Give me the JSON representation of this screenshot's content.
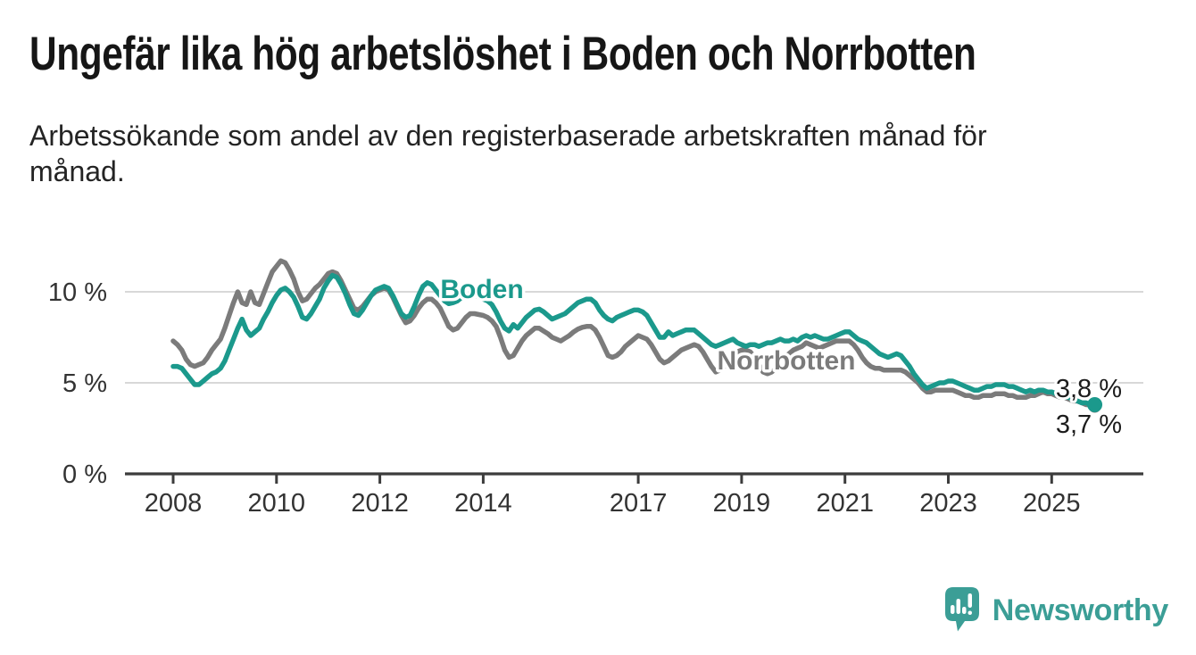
{
  "header": {
    "title": "Ungefär lika hög arbetslöshet i Boden och Norrbotten",
    "subtitle_lines": [
      "Arbetssökande som andel av den registerbaserade arbetskraften månad för",
      "månad."
    ]
  },
  "chart_data": {
    "type": "line",
    "title": "Ungefär lika hög arbetslöshet i Boden och Norrbotten",
    "subtitle": "Arbetssökande som andel av den registerbaserade arbetskraften månad för månad.",
    "unit": "%",
    "grid": "horizontal",
    "legend_position": "inline-labels",
    "x_axis": {
      "range_years": [
        2008,
        2026
      ],
      "ticks": [
        {
          "label": "2008",
          "year": 2008
        },
        {
          "label": "2010",
          "year": 2010
        },
        {
          "label": "2012",
          "year": 2012
        },
        {
          "label": "2014",
          "year": 2014
        },
        {
          "label": "2017",
          "year": 2017
        },
        {
          "label": "2019",
          "year": 2019
        },
        {
          "label": "2021",
          "year": 2021
        },
        {
          "label": "2023",
          "year": 2023
        },
        {
          "label": "2025",
          "year": 2025
        }
      ]
    },
    "y_axis": {
      "unit": "%",
      "range": [
        0,
        12.3
      ],
      "ticks": [
        {
          "label": "0 %",
          "value": 0
        },
        {
          "label": "5 %",
          "value": 5
        },
        {
          "label": "10 %",
          "value": 10
        }
      ]
    },
    "series": [
      {
        "name": "Boden",
        "color": "#1b998c",
        "start": "2008-01",
        "interval": "monthly",
        "end_label": "3,8 %",
        "last_value": 3.8,
        "values": [
          5.9,
          5.9,
          5.8,
          5.5,
          5.2,
          4.9,
          4.9,
          5.1,
          5.3,
          5.5,
          5.6,
          5.8,
          6.2,
          6.8,
          7.4,
          8.0,
          8.5,
          7.9,
          7.6,
          7.8,
          8.0,
          8.5,
          8.9,
          9.4,
          9.8,
          10.1,
          10.2,
          10.0,
          9.7,
          9.2,
          8.6,
          8.5,
          8.8,
          9.2,
          9.6,
          10.2,
          10.6,
          10.9,
          10.8,
          10.4,
          9.9,
          9.3,
          8.8,
          8.7,
          9.0,
          9.4,
          9.8,
          10.1,
          10.2,
          10.3,
          10.2,
          9.8,
          9.3,
          8.8,
          8.6,
          8.7,
          9.2,
          9.8,
          10.3,
          10.5,
          10.4,
          10.1,
          9.8,
          9.5,
          9.35,
          9.4,
          9.5,
          9.7,
          9.85,
          9.9,
          9.85,
          9.7,
          9.6,
          9.5,
          9.3,
          8.9,
          8.4,
          8.0,
          7.85,
          8.2,
          8.0,
          8.3,
          8.6,
          8.8,
          9.0,
          9.05,
          8.9,
          8.7,
          8.5,
          8.6,
          8.7,
          8.8,
          9.0,
          9.2,
          9.4,
          9.5,
          9.6,
          9.6,
          9.4,
          9.0,
          8.7,
          8.5,
          8.4,
          8.6,
          8.7,
          8.8,
          8.9,
          9.0,
          9.0,
          8.9,
          8.7,
          8.3,
          7.9,
          7.5,
          7.5,
          7.8,
          7.6,
          7.7,
          7.8,
          7.9,
          7.9,
          7.9,
          7.7,
          7.5,
          7.3,
          7.1,
          7.0,
          7.1,
          7.2,
          7.3,
          7.4,
          7.2,
          7.1,
          7.0,
          7.1,
          7.1,
          7.0,
          7.1,
          7.2,
          7.2,
          7.3,
          7.4,
          7.3,
          7.3,
          7.4,
          7.3,
          7.5,
          7.6,
          7.5,
          7.6,
          7.5,
          7.4,
          7.4,
          7.5,
          7.6,
          7.7,
          7.8,
          7.8,
          7.6,
          7.4,
          7.3,
          7.2,
          7.0,
          6.8,
          6.6,
          6.5,
          6.4,
          6.5,
          6.6,
          6.5,
          6.2,
          5.9,
          5.5,
          5.2,
          4.9,
          4.7,
          4.8,
          4.9,
          5.0,
          5.0,
          5.1,
          5.1,
          5.0,
          4.9,
          4.8,
          4.7,
          4.6,
          4.6,
          4.7,
          4.8,
          4.8,
          4.9,
          4.9,
          4.9,
          4.8,
          4.8,
          4.7,
          4.6,
          4.5,
          4.6,
          4.5,
          4.6,
          4.6,
          4.5,
          4.5,
          4.4,
          4.3,
          4.2,
          4.2,
          4.1,
          4.0,
          3.9,
          3.9,
          3.8,
          3.8
        ]
      },
      {
        "name": "Norrbotten",
        "color": "#7b7b7b",
        "start": "2008-01",
        "interval": "monthly",
        "end_label": "3,7 %",
        "last_value": 3.7,
        "values": [
          7.3,
          7.1,
          6.8,
          6.3,
          6.0,
          5.9,
          6.0,
          6.1,
          6.4,
          6.8,
          7.1,
          7.4,
          8.0,
          8.7,
          9.4,
          10.0,
          9.4,
          9.3,
          10.0,
          9.4,
          9.3,
          9.9,
          10.5,
          11.1,
          11.4,
          11.7,
          11.6,
          11.2,
          10.7,
          10.0,
          9.5,
          9.6,
          9.9,
          10.2,
          10.4,
          10.7,
          11.0,
          11.1,
          11.0,
          10.6,
          10.1,
          9.6,
          9.1,
          9.0,
          9.2,
          9.5,
          9.8,
          10.0,
          10.1,
          10.2,
          10.1,
          9.7,
          9.2,
          8.7,
          8.3,
          8.4,
          8.7,
          9.1,
          9.4,
          9.6,
          9.6,
          9.4,
          9.1,
          8.6,
          8.1,
          7.9,
          8.0,
          8.3,
          8.6,
          8.8,
          8.8,
          8.75,
          8.7,
          8.6,
          8.4,
          8.1,
          7.5,
          6.8,
          6.4,
          6.5,
          6.9,
          7.3,
          7.6,
          7.8,
          8.0,
          8.0,
          7.85,
          7.7,
          7.5,
          7.4,
          7.3,
          7.45,
          7.6,
          7.8,
          7.95,
          8.05,
          8.1,
          8.1,
          7.9,
          7.5,
          7.0,
          6.5,
          6.4,
          6.5,
          6.7,
          7.0,
          7.2,
          7.4,
          7.6,
          7.5,
          7.4,
          7.1,
          6.7,
          6.3,
          6.1,
          6.2,
          6.4,
          6.6,
          6.8,
          6.9,
          7.0,
          7.1,
          7.0,
          6.7,
          6.3,
          5.9,
          5.6,
          5.7,
          5.9,
          6.2,
          6.5,
          6.7,
          6.8,
          6.8,
          6.7,
          6.4,
          6.0,
          5.6,
          5.5,
          5.6,
          5.8,
          6.1,
          6.4,
          6.6,
          6.8,
          6.9,
          7.0,
          7.2,
          7.1,
          7.0,
          6.9,
          7.0,
          7.1,
          7.2,
          7.3,
          7.3,
          7.3,
          7.3,
          7.1,
          6.8,
          6.4,
          6.1,
          5.9,
          5.8,
          5.8,
          5.7,
          5.7,
          5.7,
          5.7,
          5.7,
          5.6,
          5.4,
          5.2,
          5.0,
          4.7,
          4.5,
          4.5,
          4.6,
          4.6,
          4.6,
          4.6,
          4.6,
          4.5,
          4.4,
          4.3,
          4.3,
          4.2,
          4.2,
          4.3,
          4.3,
          4.3,
          4.4,
          4.4,
          4.4,
          4.3,
          4.3,
          4.2,
          4.2,
          4.2,
          4.3,
          4.3,
          4.4,
          4.5,
          4.4,
          4.4,
          4.3,
          4.2,
          4.2,
          4.1,
          4.0,
          4.0,
          3.9,
          3.8,
          3.8,
          3.7
        ]
      }
    ],
    "series_labels": [
      {
        "text": "Boden",
        "color": "#1b998c"
      },
      {
        "text": "Norrbotten",
        "color": "#7b7b7b"
      }
    ],
    "colors": {
      "gridline": "#d8d8d8",
      "axis": "#3c3c3c",
      "tick_text": "#333333",
      "end_label_text": "#1c1c1c"
    }
  },
  "footer": {
    "brand": "Newsworthy",
    "logo_color": "#3b9e96",
    "logo_icon": "bar-chart-speech-bubble"
  }
}
